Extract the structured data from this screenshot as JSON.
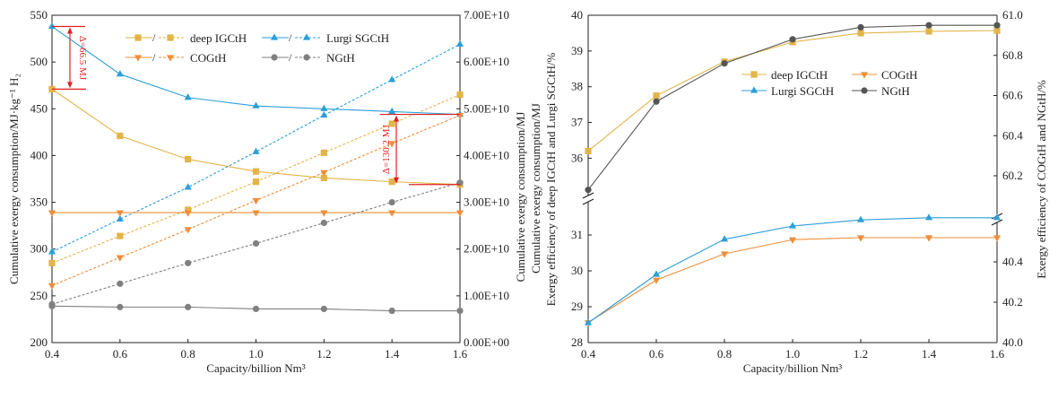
{
  "chart_data": [
    {
      "type": "line",
      "xlabel": "Capacity/billion Nm³",
      "ylabel": "Cumulative exergy consumption/MJ·kg⁻¹ H₂",
      "y2label": "Cumulative exergy consumption/MJ",
      "x": [
        0.4,
        0.6,
        0.8,
        1.0,
        1.2,
        1.4,
        1.6
      ],
      "xlim": [
        0.4,
        1.6
      ],
      "ylim": [
        200,
        550
      ],
      "y2lim": [
        0,
        70000000000.0
      ],
      "xticks": [
        "0.4",
        "0.6",
        "0.8",
        "1.0",
        "1.2",
        "1.4",
        "1.6"
      ],
      "yticks": [
        "200",
        "250",
        "300",
        "350",
        "400",
        "450",
        "500",
        "550"
      ],
      "y2ticks": [
        "0.00E+00",
        "1.00E+10",
        "2.00E+10",
        "3.00E+10",
        "4.00E+10",
        "5.00E+10",
        "6.00E+10",
        "7.00E+10"
      ],
      "legend_position": "top",
      "legend_separator": "/",
      "series": [
        {
          "name": "deep IGCtH",
          "color": "#e3b448",
          "marker": "square",
          "per_kg": [
            471,
            421,
            396,
            383,
            376,
            372,
            369
          ],
          "total": [
            17000000000.0,
            22800000000.0,
            28400000000.0,
            34400000000.0,
            40600000000.0,
            46800000000.0,
            53000000000.0
          ]
        },
        {
          "name": "Lurgi SGCtH",
          "color": "#2c9fd9",
          "marker": "triangle-up",
          "per_kg": [
            538,
            487,
            462,
            453,
            450,
            447,
            444
          ],
          "total": [
            19400000000.0,
            26400000000.0,
            33200000000.0,
            40800000000.0,
            48600000000.0,
            56200000000.0,
            63800000000.0
          ]
        },
        {
          "name": "COGtH",
          "color": "#ef8d3a",
          "marker": "triangle-down",
          "per_kg": [
            339,
            339,
            339,
            339,
            339,
            339,
            339
          ],
          "total": [
            12200000000.0,
            18200000000.0,
            24200000000.0,
            30400000000.0,
            36400000000.0,
            42600000000.0,
            48600000000.0
          ]
        },
        {
          "name": "NGtH",
          "color": "#808080",
          "marker": "circle",
          "per_kg": [
            239,
            238,
            238,
            236,
            236,
            234,
            234
          ],
          "total": [
            8200000000.0,
            12600000000.0,
            17000000000.0,
            21200000000.0,
            25600000000.0,
            30000000000.0,
            34200000000.0
          ]
        }
      ],
      "annotations": [
        "Δ=66.5 MJ",
        "Δ=130.2 MJ"
      ],
      "annotation_color": "#e02020"
    },
    {
      "type": "line",
      "xlabel": "Capacity/billion Nm³",
      "ylabel_outer": "Cumulative exergy consumption/MJ",
      "ylabel": "Exergy efficiency of deep IGCtH and Lurgi SGCtH/%",
      "y2label": "Exergy efficiency of COGtH and NGtH/%",
      "x": [
        0.4,
        0.6,
        0.8,
        1.0,
        1.2,
        1.4,
        1.6
      ],
      "xlim": [
        0.4,
        1.6
      ],
      "broken_axes": true,
      "ylim_upper": [
        35.1,
        40
      ],
      "ylim_lower": [
        28,
        31.5
      ],
      "y2lim_upper": [
        60.1,
        61.0
      ],
      "y2lim_lower": [
        40.0,
        40.6
      ],
      "xticks": [
        "0.4",
        "0.6",
        "0.8",
        "1.0",
        "1.2",
        "1.4",
        "1.6"
      ],
      "yticks_upper": [
        "36",
        "37",
        "38",
        "39",
        "40"
      ],
      "yticks_lower": [
        "28",
        "29",
        "30",
        "31"
      ],
      "y2ticks_upper": [
        "60.2",
        "60.4",
        "60.6",
        "60.8",
        "61.0"
      ],
      "y2ticks_lower": [
        "40.0",
        "40.2",
        "40.4"
      ],
      "legend_position": "center-right",
      "series": [
        {
          "name": "deep IGCtH",
          "color": "#e3b448",
          "marker": "square",
          "axis": "left-upper",
          "values": [
            36.2,
            37.75,
            38.7,
            39.25,
            39.5,
            39.55,
            39.57
          ]
        },
        {
          "name": "COGtH",
          "color": "#ef8d3a",
          "marker": "triangle-down",
          "axis": "right-lower",
          "values": [
            40.1,
            40.31,
            40.44,
            40.51,
            40.52,
            40.52,
            40.52
          ]
        },
        {
          "name": "Lurgi SGCtH",
          "color": "#2c9fd9",
          "marker": "triangle-up",
          "axis": "left-lower",
          "values": [
            28.55,
            29.9,
            30.88,
            31.25,
            31.42,
            31.48,
            31.48
          ]
        },
        {
          "name": "NGtH",
          "color": "#555555",
          "marker": "circle",
          "axis": "right-upper",
          "values": [
            60.13,
            60.57,
            60.76,
            60.88,
            60.94,
            60.95,
            60.95
          ]
        }
      ]
    }
  ]
}
